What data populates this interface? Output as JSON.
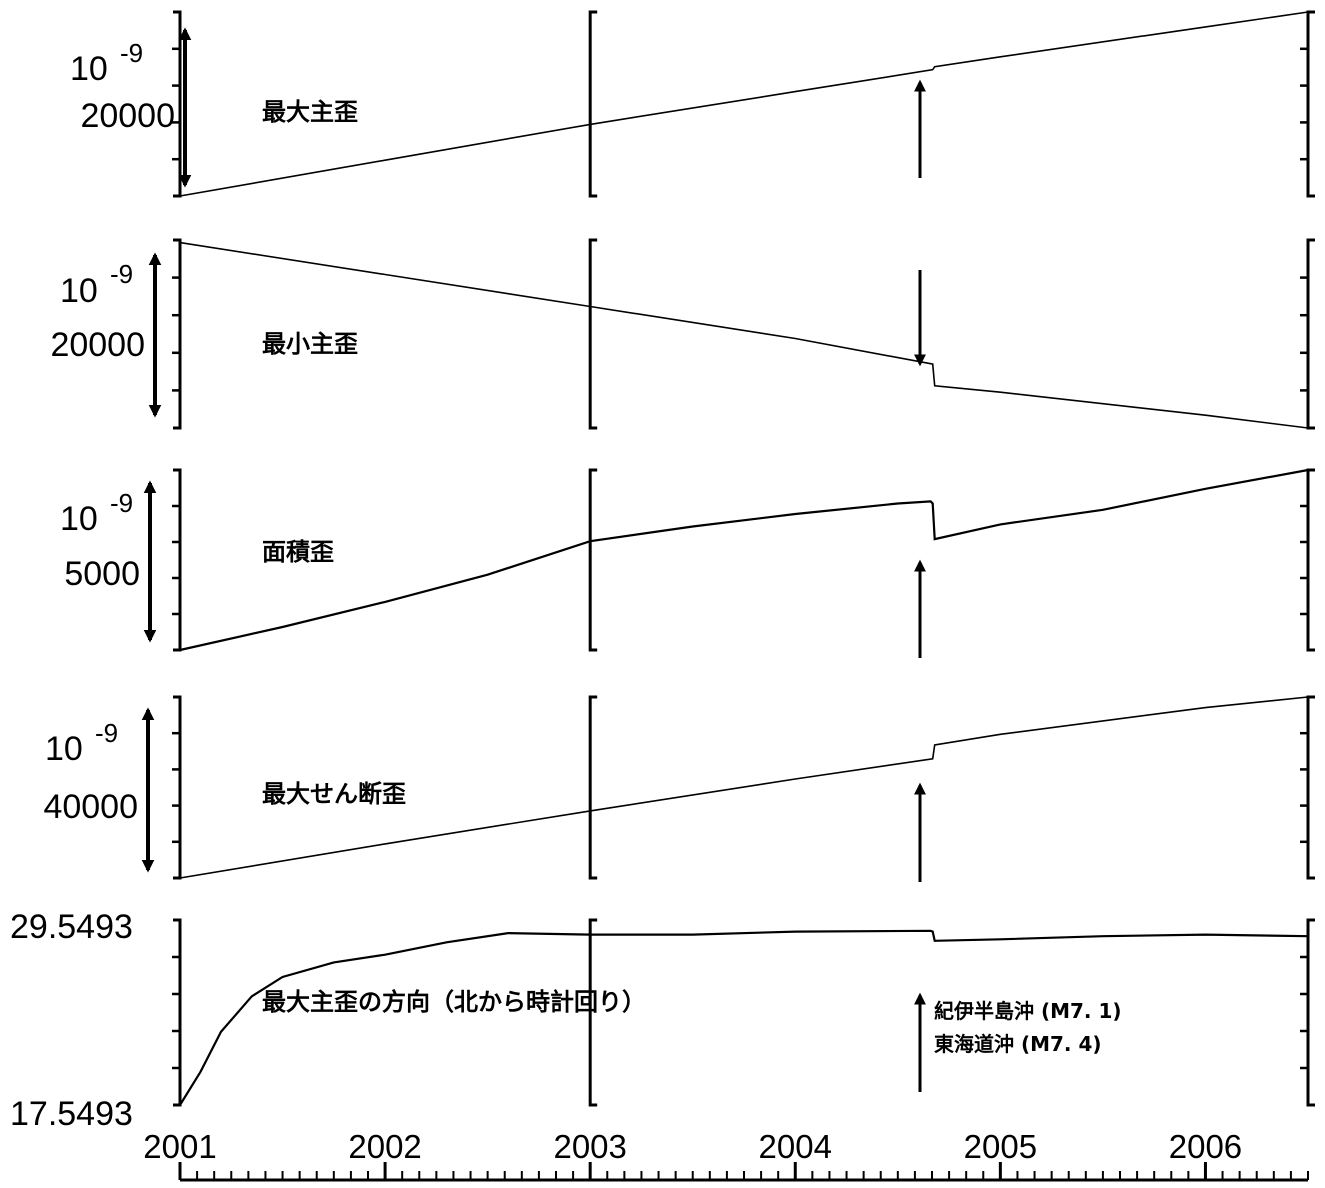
{
  "chart_data": {
    "type": "line",
    "x_axis": {
      "ticks": [
        "2001",
        "2002",
        "2003",
        "2004",
        "2005",
        "2006"
      ],
      "range": [
        2001.0,
        2006.5
      ]
    },
    "event": {
      "date": 2004.67,
      "labels": [
        "紀伊半島沖 (M7. 1)",
        "東海道沖 (M7. 4)"
      ]
    },
    "panels": [
      {
        "label": "最大主歪",
        "scale_base": "10",
        "scale_exponent": "-9",
        "scale_value": "20000",
        "event_arrow": "up",
        "points": [
          [
            2001.0,
            0.0
          ],
          [
            2002.0,
            0.36
          ],
          [
            2003.0,
            0.72
          ],
          [
            2004.0,
            1.05
          ],
          [
            2004.67,
            1.27
          ],
          [
            2004.68,
            1.3
          ],
          [
            2005.0,
            1.4
          ],
          [
            2006.0,
            1.7
          ],
          [
            2006.5,
            1.85
          ]
        ]
      },
      {
        "label": "最小主歪",
        "scale_base": "10",
        "scale_exponent": "-9",
        "scale_value": "20000",
        "event_arrow": "down",
        "points": [
          [
            2001.0,
            0.0
          ],
          [
            2002.0,
            -0.25
          ],
          [
            2003.0,
            -0.5
          ],
          [
            2004.0,
            -0.75
          ],
          [
            2004.67,
            -0.95
          ],
          [
            2004.68,
            -1.12
          ],
          [
            2005.0,
            -1.17
          ],
          [
            2006.0,
            -1.35
          ],
          [
            2006.5,
            -1.45
          ]
        ]
      },
      {
        "label": "面積歪",
        "scale_base": "10",
        "scale_exponent": "-9",
        "scale_value": "5000",
        "event_arrow": "up",
        "points": [
          [
            2001.0,
            0.0
          ],
          [
            2001.5,
            0.55
          ],
          [
            2002.0,
            1.15
          ],
          [
            2002.5,
            1.8
          ],
          [
            2003.0,
            2.6
          ],
          [
            2003.5,
            2.95
          ],
          [
            2004.0,
            3.25
          ],
          [
            2004.5,
            3.5
          ],
          [
            2004.66,
            3.55
          ],
          [
            2004.67,
            3.5
          ],
          [
            2004.68,
            2.65
          ],
          [
            2005.0,
            3.0
          ],
          [
            2005.5,
            3.35
          ],
          [
            2006.0,
            3.85
          ],
          [
            2006.5,
            4.3
          ]
        ]
      },
      {
        "label": "最大せん断歪",
        "scale_base": "10",
        "scale_exponent": "-9",
        "scale_value": "40000",
        "event_arrow": "up",
        "points": [
          [
            2001.0,
            0.0
          ],
          [
            2002.0,
            0.32
          ],
          [
            2003.0,
            0.63
          ],
          [
            2004.0,
            0.93
          ],
          [
            2004.67,
            1.12
          ],
          [
            2004.68,
            1.25
          ],
          [
            2005.0,
            1.35
          ],
          [
            2006.0,
            1.6
          ],
          [
            2006.5,
            1.7
          ]
        ]
      },
      {
        "label": "最大主歪の方向（北から時計回り）",
        "ymax_label": "29.5493",
        "ymin_label": "17.5493",
        "ylim": [
          17.5493,
          29.5493
        ],
        "event_arrow": "up",
        "points": [
          [
            2001.0,
            17.55
          ],
          [
            2001.1,
            19.7
          ],
          [
            2001.2,
            22.3
          ],
          [
            2001.35,
            24.6
          ],
          [
            2001.5,
            25.85
          ],
          [
            2001.75,
            26.8
          ],
          [
            2002.0,
            27.3
          ],
          [
            2002.3,
            28.1
          ],
          [
            2002.6,
            28.7
          ],
          [
            2003.0,
            28.6
          ],
          [
            2003.5,
            28.6
          ],
          [
            2004.0,
            28.8
          ],
          [
            2004.66,
            28.85
          ],
          [
            2004.67,
            28.8
          ],
          [
            2004.68,
            28.2
          ],
          [
            2005.0,
            28.3
          ],
          [
            2005.5,
            28.5
          ],
          [
            2006.0,
            28.6
          ],
          [
            2006.5,
            28.5
          ]
        ]
      }
    ]
  }
}
